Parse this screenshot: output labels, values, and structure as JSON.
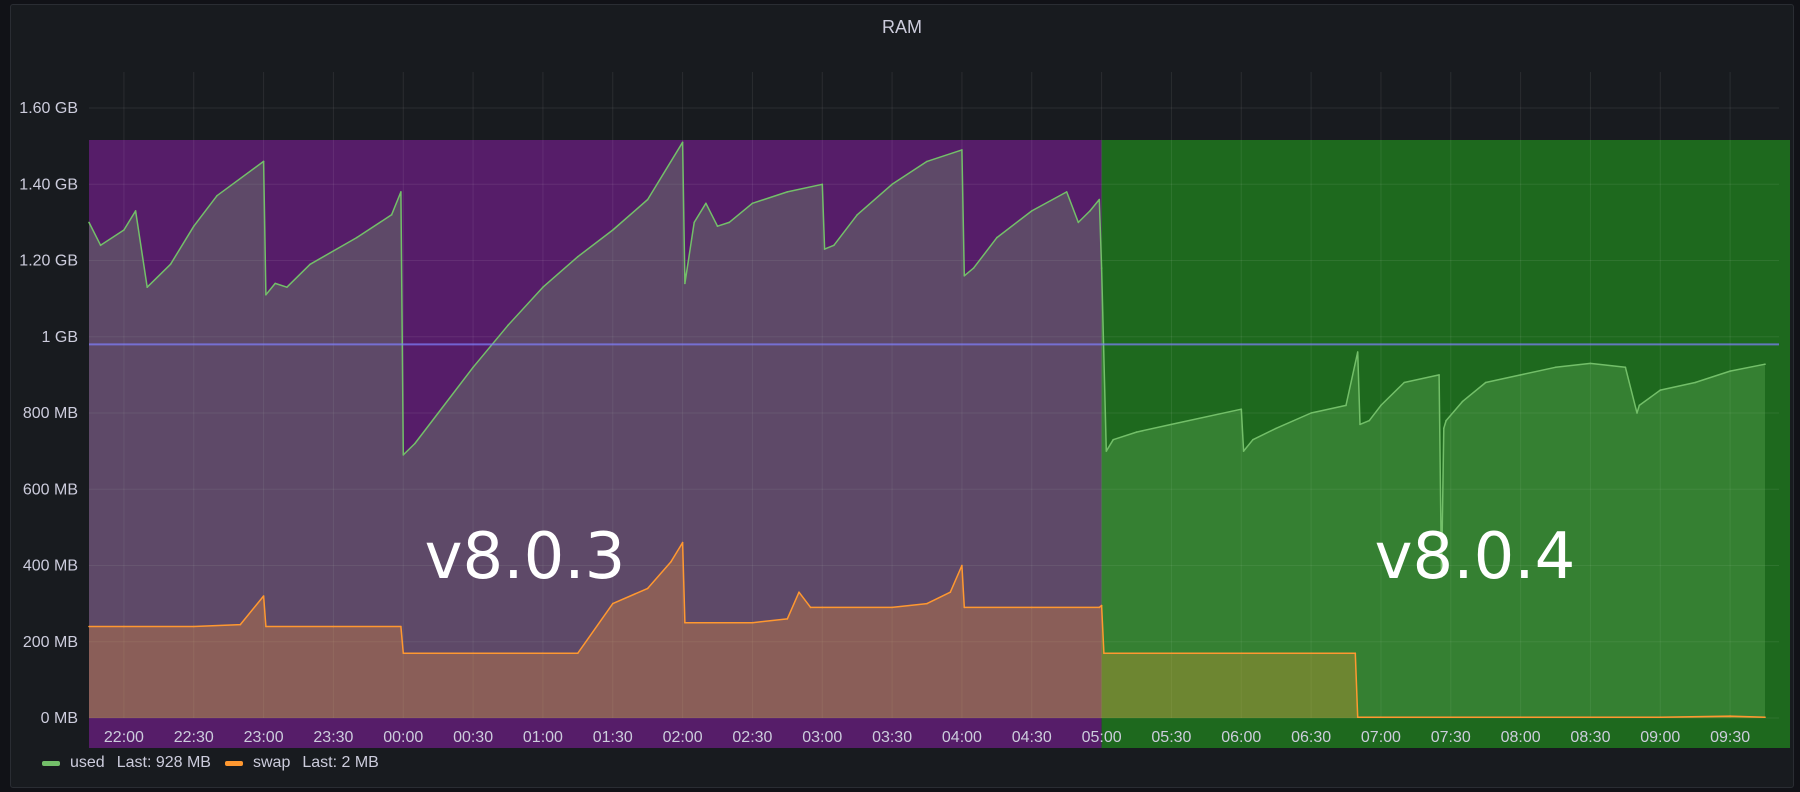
{
  "panel": {
    "title": "RAM"
  },
  "colors": {
    "used": "#73bf69",
    "swap": "#ff9830",
    "region_v803": "#5a1e6e",
    "region_v804": "#1f6e1f",
    "threshold": "#8080ff"
  },
  "legend": [
    {
      "name": "used",
      "last": "Last: 928 MB",
      "color": "#73bf69"
    },
    {
      "name": "swap",
      "last": "Last: 2 MB",
      "color": "#ff9830"
    }
  ],
  "chart_data": {
    "type": "area",
    "title": "RAM",
    "x_unit": "hours since 21:45",
    "x_ticks": [
      "22:00",
      "22:30",
      "23:00",
      "23:30",
      "00:00",
      "00:30",
      "01:00",
      "01:30",
      "02:00",
      "02:30",
      "03:00",
      "03:30",
      "04:00",
      "04:30",
      "05:00",
      "05:30",
      "06:00",
      "06:30",
      "07:00",
      "07:30",
      "08:00",
      "08:30",
      "09:00",
      "09:30"
    ],
    "y_ticks": [
      "0 MB",
      "200 MB",
      "400 MB",
      "600 MB",
      "800 MB",
      "1 GB",
      "1.20 GB",
      "1.40 GB",
      "1.60 GB"
    ],
    "ylim_mb": [
      0,
      1600
    ],
    "grid": true,
    "legend_position": "bottom-left",
    "threshold_mb": 980,
    "regions": [
      {
        "label": "v8.0.3",
        "from": "21:45",
        "to": "05:00",
        "color": "#5a1e6e"
      },
      {
        "label": "v8.0.4",
        "from": "05:00",
        "to": "09:50",
        "color": "#1f6e1f"
      }
    ],
    "series": [
      {
        "name": "used",
        "color": "#73bf69",
        "x": [
          "21:45",
          "21:50",
          "22:00",
          "22:05",
          "22:10",
          "22:20",
          "22:30",
          "22:40",
          "23:00",
          "23:01",
          "23:05",
          "23:10",
          "23:20",
          "23:40",
          "23:55",
          "23:59",
          "00:00",
          "00:05",
          "00:15",
          "00:30",
          "00:45",
          "01:00",
          "01:15",
          "01:30",
          "01:45",
          "02:00",
          "02:01",
          "02:05",
          "02:10",
          "02:15",
          "02:20",
          "02:30",
          "02:45",
          "03:00",
          "03:01",
          "03:05",
          "03:15",
          "03:30",
          "03:45",
          "04:00",
          "04:01",
          "04:05",
          "04:15",
          "04:30",
          "04:45",
          "04:50",
          "04:55",
          "04:59",
          "05:00",
          "05:02",
          "05:05",
          "05:15",
          "05:30",
          "06:00",
          "06:01",
          "06:05",
          "06:15",
          "06:30",
          "06:45",
          "06:50",
          "06:51",
          "06:55",
          "07:00",
          "07:10",
          "07:25",
          "07:26",
          "07:27",
          "07:28",
          "07:35",
          "07:45",
          "08:00",
          "08:15",
          "08:30",
          "08:45",
          "08:50",
          "08:51",
          "09:00",
          "09:15",
          "09:30",
          "09:45"
        ],
        "y_mb": [
          1300,
          1240,
          1280,
          1330,
          1130,
          1190,
          1290,
          1370,
          1460,
          1110,
          1140,
          1130,
          1190,
          1260,
          1320,
          1380,
          690,
          720,
          800,
          920,
          1030,
          1130,
          1210,
          1280,
          1360,
          1510,
          1140,
          1300,
          1350,
          1290,
          1300,
          1350,
          1380,
          1400,
          1230,
          1240,
          1320,
          1400,
          1460,
          1490,
          1160,
          1180,
          1260,
          1330,
          1380,
          1300,
          1330,
          1360,
          1180,
          700,
          730,
          750,
          770,
          810,
          700,
          730,
          760,
          800,
          820,
          960,
          770,
          780,
          820,
          880,
          900,
          370,
          760,
          780,
          830,
          880,
          900,
          920,
          930,
          920,
          800,
          820,
          860,
          880,
          910,
          928
        ]
      },
      {
        "name": "swap",
        "color": "#ff9830",
        "x": [
          "21:45",
          "22:00",
          "22:30",
          "22:50",
          "23:00",
          "23:01",
          "23:30",
          "23:59",
          "00:00",
          "00:30",
          "01:00",
          "01:15",
          "01:30",
          "01:45",
          "01:55",
          "02:00",
          "02:01",
          "02:30",
          "02:45",
          "02:50",
          "02:55",
          "03:00",
          "03:30",
          "03:45",
          "03:55",
          "04:00",
          "04:01",
          "04:30",
          "04:59",
          "05:00",
          "05:01",
          "05:30",
          "06:00",
          "06:30",
          "06:49",
          "06:50",
          "07:00",
          "08:00",
          "09:00",
          "09:30",
          "09:45"
        ],
        "y_mb": [
          240,
          240,
          240,
          245,
          320,
          240,
          240,
          240,
          170,
          170,
          170,
          170,
          300,
          340,
          410,
          460,
          250,
          250,
          260,
          330,
          290,
          290,
          290,
          300,
          330,
          400,
          290,
          290,
          290,
          295,
          170,
          170,
          170,
          170,
          170,
          2,
          2,
          2,
          2,
          5,
          2
        ]
      }
    ]
  }
}
